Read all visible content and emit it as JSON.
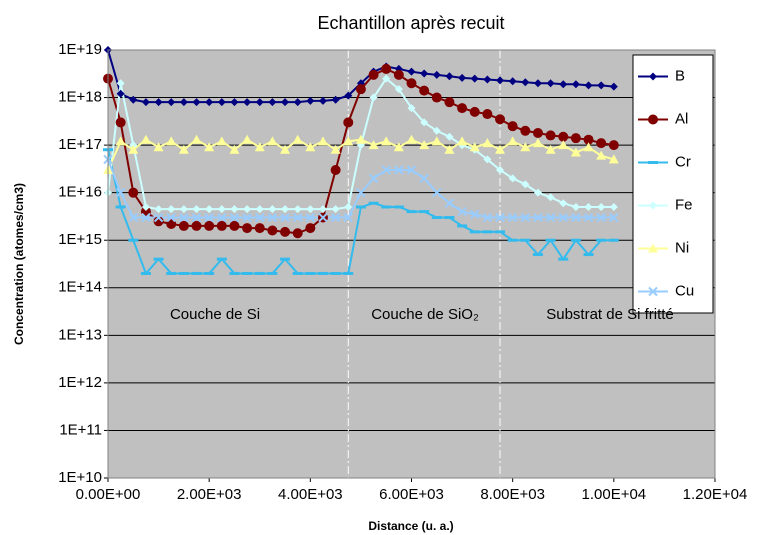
{
  "chart_data": {
    "type": "line",
    "title": "Echantillon après recuit",
    "x_label": "Distance (u. a.)",
    "y_label": "Concentration (atomes/cm3)",
    "log_y": true,
    "grid": true,
    "legend": "top-right",
    "x": [
      0,
      250,
      500,
      750,
      1000,
      1250,
      1500,
      1750,
      2000,
      2250,
      2500,
      2750,
      3000,
      3250,
      3500,
      3750,
      4000,
      4250,
      4500,
      4750,
      5000,
      5250,
      5500,
      5750,
      6000,
      6250,
      6500,
      6750,
      7000,
      7250,
      7500,
      7750,
      8000,
      8250,
      8500,
      8750,
      9000,
      9250,
      9500,
      9750,
      10000
    ],
    "series": [
      {
        "name": "B",
        "color": "#000080",
        "marker": "diamond",
        "values": [
          1e+19,
          1.2e+18,
          9e+17,
          8e+17,
          8e+17,
          8e+17,
          8e+17,
          8e+17,
          8e+17,
          8e+17,
          8e+17,
          8e+17,
          8e+17,
          8e+17,
          8e+17,
          8e+17,
          8.5e+17,
          8.5e+17,
          9e+17,
          1.1e+18,
          2e+18,
          3.5e+18,
          4.5e+18,
          4e+18,
          3.5e+18,
          3.2e+18,
          3e+18,
          2.8e+18,
          2.6e+18,
          2.5e+18,
          2.4e+18,
          2.3e+18,
          2.2e+18,
          2.1e+18,
          2e+18,
          2e+18,
          1.9e+18,
          1.9e+18,
          1.8e+18,
          1.8e+18,
          1.7e+18
        ]
      },
      {
        "name": "Al",
        "color": "#800000",
        "marker": "circle",
        "values": [
          2.5e+18,
          3e+17,
          1e+16,
          4000000000000000.0,
          2500000000000000.0,
          2200000000000000.0,
          2000000000000000.0,
          2000000000000000.0,
          2000000000000000.0,
          2000000000000000.0,
          2000000000000000.0,
          1800000000000000.0,
          1800000000000000.0,
          1600000000000000.0,
          1500000000000000.0,
          1400000000000000.0,
          1800000000000000.0,
          3000000000000000.0,
          3e+16,
          3e+17,
          1.5e+18,
          3e+18,
          4e+18,
          3e+18,
          2e+18,
          1.4e+18,
          1e+18,
          8e+17,
          6e+17,
          5e+17,
          4.5e+17,
          3.5e+17,
          2.5e+17,
          2e+17,
          1.8e+17,
          1.6e+17,
          1.5e+17,
          1.4e+17,
          1.3e+17,
          1.1e+17,
          1e+17
        ]
      },
      {
        "name": "Cr",
        "color": "#33bbee",
        "marker": "dash",
        "values": [
          8e+16,
          5000000000000000.0,
          1000000000000000.0,
          200000000000000.0,
          400000000000000.0,
          200000000000000.0,
          200000000000000.0,
          200000000000000.0,
          200000000000000.0,
          400000000000000.0,
          200000000000000.0,
          200000000000000.0,
          200000000000000.0,
          200000000000000.0,
          400000000000000.0,
          200000000000000.0,
          200000000000000.0,
          200000000000000.0,
          200000000000000.0,
          200000000000000.0,
          5000000000000000.0,
          6000000000000000.0,
          5000000000000000.0,
          5000000000000000.0,
          4000000000000000.0,
          4000000000000000.0,
          3000000000000000.0,
          3000000000000000.0,
          2000000000000000.0,
          1500000000000000.0,
          1500000000000000.0,
          1500000000000000.0,
          1000000000000000.0,
          1000000000000000.0,
          500000000000000.0,
          1000000000000000.0,
          400000000000000.0,
          1000000000000000.0,
          500000000000000.0,
          1000000000000000.0,
          1000000000000000.0
        ]
      },
      {
        "name": "Fe",
        "color": "#ccffff",
        "marker": "diamond",
        "values": [
          1e+16,
          2e+18,
          1e+17,
          5000000000000000.0,
          4500000000000000.0,
          4500000000000000.0,
          4500000000000000.0,
          4500000000000000.0,
          4500000000000000.0,
          4500000000000000.0,
          4500000000000000.0,
          4500000000000000.0,
          4500000000000000.0,
          4500000000000000.0,
          4500000000000000.0,
          4500000000000000.0,
          4500000000000000.0,
          4500000000000000.0,
          4500000000000000.0,
          5000000000000000.0,
          1e+17,
          1e+18,
          2.5e+18,
          1.5e+18,
          6e+17,
          3e+17,
          2e+17,
          1.5e+17,
          1e+17,
          8e+16,
          5e+16,
          3e+16,
          2e+16,
          1.5e+16,
          1e+16,
          8000000000000000.0,
          6000000000000000.0,
          5000000000000000.0,
          5000000000000000.0,
          5000000000000000.0,
          5000000000000000.0
        ]
      },
      {
        "name": "Ni",
        "color": "#ffff99",
        "marker": "triangle",
        "values": [
          3e+16,
          1.2e+17,
          8e+16,
          1.3e+17,
          9e+16,
          1.2e+17,
          8e+16,
          1.3e+17,
          9e+16,
          1.2e+17,
          8e+16,
          1.3e+17,
          9e+16,
          1.2e+17,
          8e+16,
          1.3e+17,
          9e+16,
          1.2e+17,
          8e+16,
          1.2e+17,
          1.3e+17,
          1e+17,
          1.2e+17,
          9e+16,
          1.3e+17,
          1e+17,
          1.2e+17,
          8e+16,
          1.2e+17,
          9e+16,
          1.1e+17,
          8e+16,
          1.2e+17,
          9e+16,
          1.1e+17,
          8e+16,
          1e+17,
          7e+16,
          9e+16,
          6e+16,
          5e+16
        ]
      },
      {
        "name": "Cu",
        "color": "#99ccff",
        "marker": "x",
        "values": [
          5e+16,
          1e+16,
          3000000000000000.0,
          3000000000000000.0,
          3000000000000000.0,
          3000000000000000.0,
          3000000000000000.0,
          3000000000000000.0,
          3000000000000000.0,
          3000000000000000.0,
          3000000000000000.0,
          3000000000000000.0,
          3000000000000000.0,
          3000000000000000.0,
          3000000000000000.0,
          3000000000000000.0,
          3000000000000000.0,
          3000000000000000.0,
          3000000000000000.0,
          3000000000000000.0,
          1e+16,
          2e+16,
          3e+16,
          3e+16,
          3e+16,
          2e+16,
          1e+16,
          6000000000000000.0,
          4000000000000000.0,
          3500000000000000.0,
          3000000000000000.0,
          3000000000000000.0,
          3000000000000000.0,
          3000000000000000.0,
          3000000000000000.0,
          3000000000000000.0,
          3000000000000000.0,
          3000000000000000.0,
          3000000000000000.0,
          3000000000000000.0,
          3000000000000000.0
        ]
      }
    ],
    "dividers": [
      4750,
      7750
    ],
    "annotations": [
      "Couche de Si",
      "Couche de SiO₂",
      "Substrat de Si fritté"
    ],
    "xlim": [
      0,
      12000
    ],
    "xticks": [
      {
        "value": 0,
        "label": "0.00E+00"
      },
      {
        "value": 2000,
        "label": "2.00E+03"
      },
      {
        "value": 4000,
        "label": "4.00E+03"
      },
      {
        "value": 6000,
        "label": "6.00E+03"
      },
      {
        "value": 8000,
        "label": "8.00E+03"
      },
      {
        "value": 10000,
        "label": "1.00E+04"
      },
      {
        "value": 12000,
        "label": "1.20E+04"
      }
    ],
    "ylim": [
      10000000000.0,
      1e+19
    ],
    "yticks": [
      {
        "value": 10000000000.0,
        "label": "1E+10"
      },
      {
        "value": 100000000000.0,
        "label": "1E+11"
      },
      {
        "value": 1000000000000.0,
        "label": "1E+12"
      },
      {
        "value": 10000000000000.0,
        "label": "1E+13"
      },
      {
        "value": 100000000000000.0,
        "label": "1E+14"
      },
      {
        "value": 1000000000000000.0,
        "label": "1E+15"
      },
      {
        "value": 1e+16,
        "label": "1E+16"
      },
      {
        "value": 1e+17,
        "label": "1E+17"
      },
      {
        "value": 1e+18,
        "label": "1E+18"
      },
      {
        "value": 1e+19,
        "label": "1E+19"
      }
    ]
  }
}
